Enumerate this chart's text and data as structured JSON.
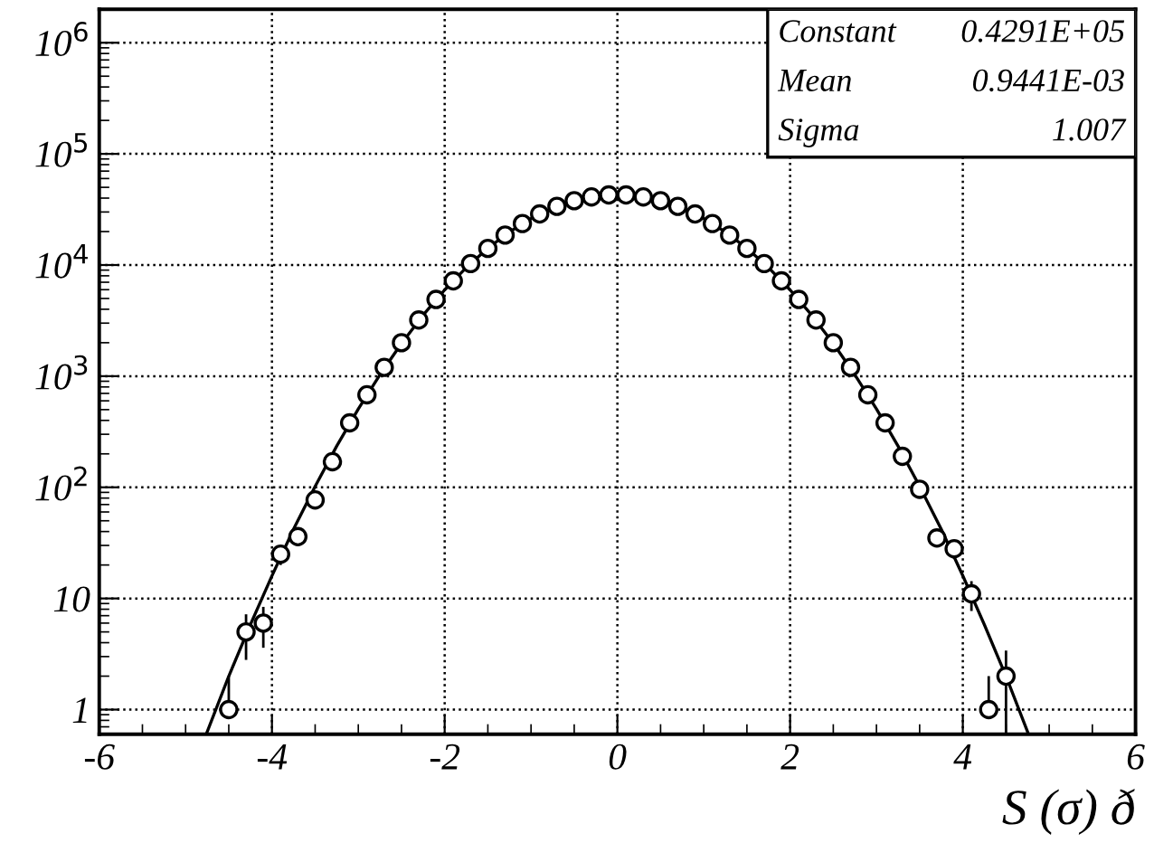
{
  "chart_data": {
    "type": "scatter",
    "xlabel": "S (σ) ð",
    "annotations": [
      "Constant",
      "0.4291E+05",
      "Mean",
      "0.9441E-03",
      "Sigma",
      "1.007"
    ],
    "xlim": [
      -6,
      6
    ],
    "xticks": [
      -6,
      -4,
      -2,
      0,
      2,
      4,
      6
    ],
    "ylim": [
      0.6,
      2000000
    ],
    "log": true,
    "yticks": [
      1,
      10,
      {
        "value": 100,
        "label": "10$^{2}$"
      },
      {
        "value": 1000,
        "label": "10$^{3}$"
      },
      {
        "value": 10000,
        "label": "10$^{4}$"
      },
      {
        "value": 100000,
        "label": "10$^{5}$"
      },
      {
        "value": 1000000,
        "label": "10$^{6}$"
      }
    ],
    "grid": true,
    "marker": "circle",
    "series": [
      {
        "color": "#000000",
        "x": [
          -4.5,
          -4.3,
          -4.1,
          -3.9,
          -3.7,
          -3.5,
          -3.3,
          -3.1,
          -2.9,
          -2.7,
          -2.5,
          -2.3,
          -2.1,
          -1.9,
          -1.7,
          -1.5,
          -1.3,
          -1.1,
          -0.9,
          -0.7,
          -0.5,
          -0.3,
          -0.1,
          0.1,
          0.3,
          0.5,
          0.7,
          0.9,
          1.1,
          1.3,
          1.5,
          1.7,
          1.9,
          2.1,
          2.3,
          2.5,
          2.7,
          2.9,
          3.1,
          3.3,
          3.5,
          3.7,
          3.9,
          4.1,
          4.3,
          4.5
        ],
        "values": [
          1,
          5,
          6,
          25,
          36,
          77,
          170,
          380,
          680,
          1200,
          2000,
          3200,
          4900,
          7200,
          10300,
          14100,
          18600,
          23600,
          28800,
          33700,
          37900,
          41000,
          42700,
          42700,
          41000,
          37900,
          33700,
          28800,
          23600,
          18600,
          14100,
          10300,
          7200,
          4900,
          3200,
          2000,
          1200,
          680,
          380,
          190,
          96,
          35,
          28,
          11,
          1,
          2
        ],
        "errors": [
          1,
          2.2,
          2.4,
          5,
          6,
          null,
          null,
          null,
          null,
          null,
          null,
          null,
          null,
          null,
          null,
          null,
          null,
          null,
          null,
          null,
          null,
          null,
          null,
          null,
          null,
          null,
          null,
          null,
          null,
          null,
          null,
          null,
          null,
          null,
          null,
          null,
          null,
          null,
          null,
          null,
          null,
          6,
          5.3,
          3.3,
          1,
          1.4
        ]
      },
      {
        "type": "line",
        "color": "#000000",
        "marker": "none",
        "x": [
          -4.75,
          -4.5,
          -4.25,
          -4,
          -3.75,
          -3.5,
          -3.25,
          -3,
          -2.75,
          -2.5,
          -2.25,
          -2,
          -1.75,
          -1.5,
          -1.25,
          -1,
          -0.75,
          -0.5,
          -0.25,
          0,
          0.25,
          0.5,
          0.75,
          1,
          1.25,
          1.5,
          1.75,
          2,
          2.25,
          2.5,
          2.75,
          3,
          3.25,
          3.5,
          3.75,
          4,
          4.25,
          4.5,
          4.75
        ],
        "values": [
          0.63,
          2,
          5.8,
          16,
          42,
          102,
          235,
          507,
          1030,
          1970,
          3540,
          5970,
          9480,
          14150,
          19860,
          26200,
          32510,
          37920,
          41610,
          42910,
          41610,
          37920,
          32510,
          26200,
          19860,
          14150,
          9480,
          5970,
          3540,
          1970,
          1030,
          507,
          235,
          102,
          42,
          16,
          5.8,
          2,
          0.63
        ]
      }
    ]
  }
}
